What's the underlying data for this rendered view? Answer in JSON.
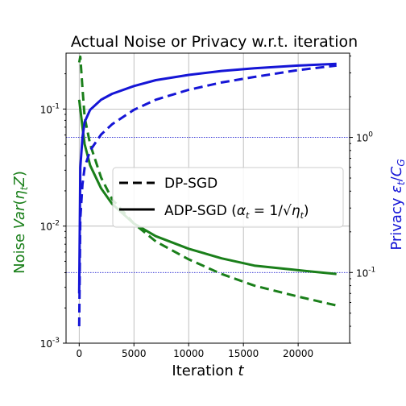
{
  "chart_data": {
    "type": "line",
    "title": "Actual Noise or Privacy w.r.t. iteration",
    "xlabel": "Iteration t",
    "ylabel_left": "Noise Var(η_t Z)",
    "ylabel_right": "Privacy  ε_t/C_G",
    "xlim": [
      -1200,
      24700
    ],
    "x_ticks": [
      0,
      5000,
      10000,
      15000,
      20000
    ],
    "x_tick_labels": [
      "0",
      "5000",
      "10000",
      "15000",
      "20000"
    ],
    "y_left": {
      "scale": "log",
      "lim": [
        0.001,
        0.3
      ],
      "ticks": [
        0.001,
        0.01,
        0.1
      ],
      "tick_labels": [
        "10^-3",
        "10^-2",
        "10^-1"
      ]
    },
    "y_right": {
      "scale": "log",
      "lim": [
        0.03,
        4.2
      ],
      "ticks": [
        0.1,
        1
      ],
      "tick_labels": [
        "10^-1",
        "10^0"
      ]
    },
    "grid": true,
    "legend": {
      "placement": "center-right",
      "entries": [
        {
          "label": "DP-SGD",
          "style": "dashed"
        },
        {
          "label": "ADP-SGD (α_t = 1/√η_t)",
          "style": "solid"
        }
      ]
    },
    "colors": {
      "noise": "#1a7f1a",
      "privacy": "#1515d6",
      "hline": "#2020d0"
    },
    "reference_lines_right_axis": [
      1.0,
      0.1
    ],
    "series": [
      {
        "axis": "left",
        "color": "noise",
        "style": "dashed",
        "x": [
          0,
          100,
          300,
          500,
          1000,
          2000,
          3000,
          5000,
          7000,
          10000,
          13000,
          16000,
          20000,
          23500
        ],
        "values": [
          0.25,
          0.28,
          0.15,
          0.085,
          0.05,
          0.026,
          0.017,
          0.0105,
          0.0074,
          0.0052,
          0.0039,
          0.0031,
          0.0025,
          0.0021
        ]
      },
      {
        "axis": "left",
        "color": "noise",
        "style": "solid",
        "x": [
          0,
          100,
          300,
          500,
          1000,
          2000,
          3000,
          5000,
          7000,
          10000,
          13000,
          16000,
          20000,
          23500
        ],
        "values": [
          0.12,
          0.1,
          0.07,
          0.05,
          0.033,
          0.021,
          0.0155,
          0.0105,
          0.0082,
          0.0064,
          0.0053,
          0.0046,
          0.0042,
          0.0039
        ]
      },
      {
        "axis": "right",
        "color": "privacy",
        "style": "dashed",
        "x": [
          0,
          100,
          300,
          500,
          1000,
          2000,
          3000,
          5000,
          7000,
          10000,
          13000,
          16000,
          20000,
          23500
        ],
        "values": [
          0.04,
          0.25,
          0.45,
          0.6,
          0.8,
          1.05,
          1.25,
          1.6,
          1.9,
          2.25,
          2.55,
          2.8,
          3.15,
          3.4
        ]
      },
      {
        "axis": "right",
        "color": "privacy",
        "style": "solid",
        "x": [
          0,
          100,
          300,
          500,
          1000,
          2000,
          3000,
          5000,
          7000,
          10000,
          13000,
          16000,
          20000,
          23500
        ],
        "values": [
          0.07,
          0.6,
          1.0,
          1.3,
          1.6,
          1.9,
          2.1,
          2.4,
          2.65,
          2.9,
          3.1,
          3.25,
          3.4,
          3.5
        ]
      }
    ]
  }
}
